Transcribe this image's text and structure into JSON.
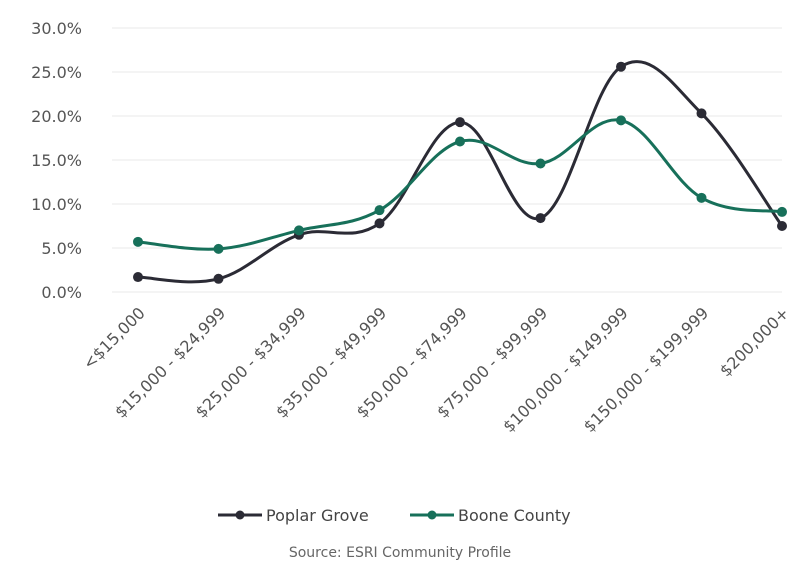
{
  "chart_data": {
    "type": "line",
    "categories": [
      "<$15,000",
      "$15,000 - $24,999",
      "$25,000 - $34,999",
      "$35,000 - $49,999",
      "$50,000 - $74,999",
      "$75,000 - $99,999",
      "$100,000 - $149,999",
      "$150,000 - $199,999",
      "$200,000+"
    ],
    "series": [
      {
        "name": "Poplar Grove",
        "values": [
          1.7,
          1.5,
          6.5,
          7.8,
          19.3,
          8.4,
          25.6,
          20.3,
          7.5
        ],
        "color": "#2b2b35"
      },
      {
        "name": "Boone County",
        "values": [
          5.7,
          4.9,
          7.0,
          9.3,
          17.1,
          14.6,
          19.5,
          10.7,
          9.1
        ],
        "color": "#17705a"
      }
    ],
    "y_ticks": [
      "0.0%",
      "5.0%",
      "10.0%",
      "15.0%",
      "20.0%",
      "25.0%",
      "30.0%"
    ],
    "ylim": [
      0,
      30
    ],
    "grid": true,
    "legend_position": "bottom",
    "source": "Source: ESRI Community Profile"
  }
}
